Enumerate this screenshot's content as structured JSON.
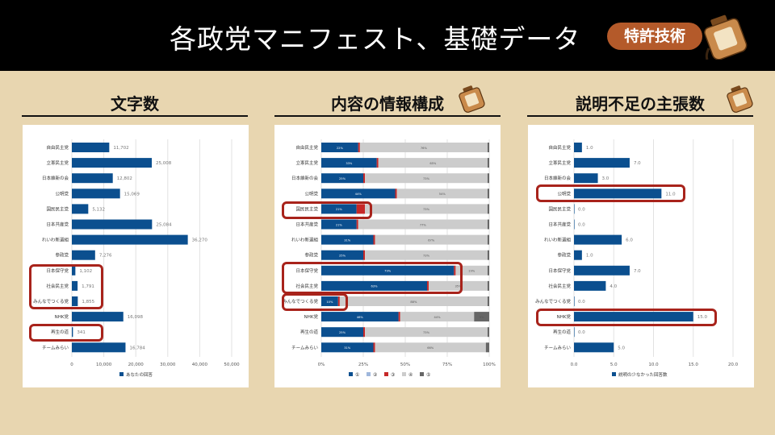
{
  "header": {
    "title": "各政党マニフェスト、基礎データ",
    "badge": "特許技術",
    "jar_label": "秘伝のタレ"
  },
  "panels": [
    {
      "id": "p1",
      "title": "文字数"
    },
    {
      "id": "p2",
      "title": "内容の情報構成"
    },
    {
      "id": "p3",
      "title": "説明不足の主張数"
    }
  ],
  "colors": {
    "blue": "#0b4f8f",
    "red": "#c62828",
    "gray": "#cccccc",
    "darkgray": "#666666",
    "highlight": "#a8231b",
    "brown": "#b45a2a"
  },
  "chart_data": [
    {
      "type": "bar",
      "title": "文字数",
      "categories": [
        "自由民主党",
        "立憲民主党",
        "日本維新の会",
        "公明党",
        "国民民主党",
        "日本共産党",
        "れいわ新選組",
        "参政党",
        "日本保守党",
        "社会民主党",
        "みんなでつくる党",
        "NHK党",
        "再生の道",
        "チームみらい"
      ],
      "values": [
        11702,
        25008,
        12802,
        15069,
        5132,
        25084,
        36270,
        7276,
        1102,
        1791,
        1855,
        16098,
        341,
        16784
      ],
      "value_labels": [
        "11,702",
        "25,008",
        "12,802",
        "15,069",
        "5,132",
        "25,084",
        "36,270",
        "7,276",
        "1,102",
        "1,791",
        "1,855",
        "16,098",
        "341",
        "16,784"
      ],
      "xticks": [
        "0",
        "10,000",
        "20,000",
        "30,000",
        "40,000",
        "50,000"
      ],
      "xlim": [
        0,
        50000
      ],
      "legend": [
        "あなたの回答"
      ],
      "grid": true,
      "highlighted": [
        "日本保守党",
        "社会民主党",
        "みんなでつくる党",
        "再生の道"
      ]
    },
    {
      "type": "bar",
      "stacked": true,
      "title": "内容の情報構成",
      "categories": [
        "自由民主党",
        "立憲民主党",
        "日本維新の会",
        "公明党",
        "国民民主党",
        "日本共産党",
        "れいわ新選組",
        "参政党",
        "日本保守党",
        "社会民主党",
        "みんなでつくる党",
        "NHK党",
        "再生の道",
        "チームみらい"
      ],
      "series": [
        {
          "name": "①",
          "values": [
            22,
            33,
            25,
            44,
            21,
            21,
            31,
            25,
            79,
            63,
            10,
            46,
            25,
            31
          ]
        },
        {
          "name": "②",
          "values": [
            0,
            0,
            0,
            0,
            0,
            0,
            0,
            0,
            0,
            0,
            0,
            0,
            0,
            0
          ]
        },
        {
          "name": "③",
          "values": [
            1,
            1,
            1,
            1,
            5,
            1,
            1,
            1,
            1,
            1,
            1,
            1,
            1,
            1
          ]
        },
        {
          "name": "④",
          "values": [
            76,
            65,
            73,
            54,
            73,
            77,
            67,
            73,
            19,
            35,
            88,
            44,
            73,
            66
          ]
        },
        {
          "name": "⑤",
          "values": [
            1,
            1,
            1,
            1,
            1,
            1,
            1,
            1,
            1,
            1,
            1,
            9,
            1,
            2
          ]
        }
      ],
      "segment_labels": [
        [
          "22%",
          "",
          "",
          "76%",
          "1%"
        ],
        [
          "33%",
          "",
          "",
          "65%",
          "1%"
        ],
        [
          "25%",
          "",
          "",
          "73%",
          "1%"
        ],
        [
          "44%",
          "",
          "",
          "54%",
          "1%"
        ],
        [
          "21%",
          "",
          "5%",
          "73%",
          "1%"
        ],
        [
          "21%",
          "",
          "",
          "77%",
          "1%"
        ],
        [
          "31%",
          "",
          "",
          "67%",
          "1%"
        ],
        [
          "25%",
          "",
          "",
          "73%",
          "1%"
        ],
        [
          "79%",
          "",
          "",
          "19%",
          "1%"
        ],
        [
          "63%",
          "",
          "",
          "35%",
          "1%"
        ],
        [
          "10%",
          "",
          "",
          "88%",
          "1%"
        ],
        [
          "46%",
          "",
          "",
          "44%",
          "9%"
        ],
        [
          "25%",
          "",
          "",
          "73%",
          "1%"
        ],
        [
          "31%",
          "",
          "",
          "66%",
          "2%"
        ]
      ],
      "xticks": [
        "0%",
        "25%",
        "50%",
        "75%",
        "100%"
      ],
      "xlim": [
        0,
        100
      ],
      "legend": [
        "①",
        "②",
        "③",
        "④",
        "⑤"
      ],
      "grid": true,
      "highlighted": [
        "国民民主党",
        "日本保守党",
        "社会民主党",
        "みんなでつくる党"
      ]
    },
    {
      "type": "bar",
      "title": "説明不足の主張数",
      "categories": [
        "自由民主党",
        "立憲民主党",
        "日本維新の会",
        "公明党",
        "国民民主党",
        "日本共産党",
        "れいわ新選組",
        "参政党",
        "日本保守党",
        "社会民主党",
        "みんなでつくる党",
        "NHK党",
        "再生の道",
        "チームみらい"
      ],
      "values": [
        1,
        7,
        3,
        11,
        0,
        0,
        6,
        1,
        7,
        4,
        0,
        15,
        0,
        5
      ],
      "value_labels": [
        "1.0",
        "7.0",
        "3.0",
        "11.0",
        "0.0",
        "0.0",
        "6.0",
        "1.0",
        "7.0",
        "4.0",
        "0.0",
        "15.0",
        "0.0",
        "5.0"
      ],
      "xticks": [
        "0.0",
        "5.0",
        "10.0",
        "15.0",
        "20.0"
      ],
      "xlim": [
        0,
        20
      ],
      "legend": [
        "説明の少なかった回答数"
      ],
      "grid": true,
      "highlighted": [
        "公明党",
        "NHK党"
      ]
    }
  ]
}
